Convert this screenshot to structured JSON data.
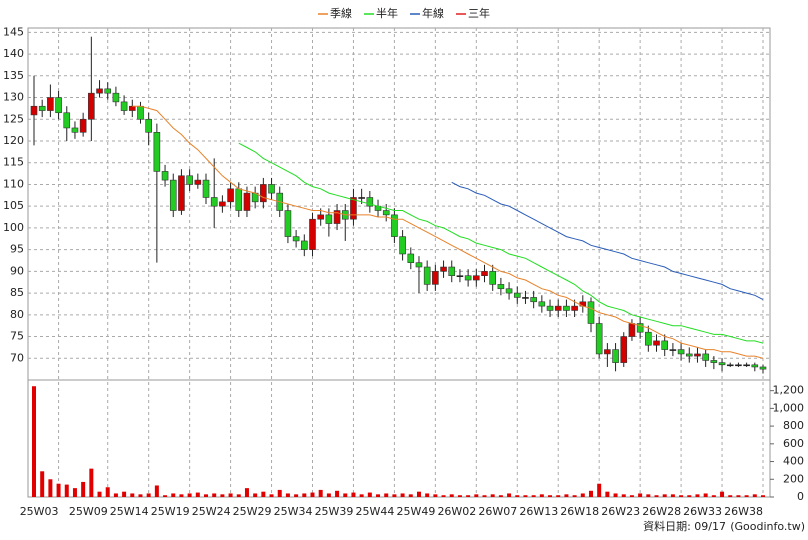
{
  "chart_data": {
    "type": "candlestick",
    "legend": "top",
    "grid": true,
    "date_note": "資料日期: 09/17",
    "source": "(Goodinfo.tw)",
    "up_color": "#d40000",
    "down_color": "#22cc22",
    "volume_color": "#e00000",
    "ylim": [
      65,
      146
    ],
    "yticks": [
      70,
      75,
      80,
      85,
      90,
      95,
      100,
      105,
      110,
      115,
      120,
      125,
      130,
      135,
      140,
      145
    ],
    "volume_ylim": [
      0,
      1230
    ],
    "volume_ticks": [
      0,
      200,
      400,
      600,
      800,
      {
        "value": 1000,
        "label": "1,000"
      },
      {
        "value": 1200,
        "label": "1,200"
      }
    ],
    "categories": [
      null,
      null,
      null,
      "25W03",
      null,
      null,
      null,
      null,
      null,
      "25W09",
      null,
      null,
      null,
      null,
      "25W14",
      null,
      null,
      null,
      null,
      "25W19",
      null,
      null,
      null,
      null,
      "25W24",
      null,
      null,
      null,
      null,
      "25W29",
      null,
      null,
      null,
      null,
      "25W34",
      null,
      null,
      null,
      null,
      "25W39",
      null,
      null,
      null,
      null,
      "25W44",
      null,
      null,
      null,
      null,
      "25W49",
      null,
      null,
      null,
      null,
      "26W02",
      null,
      null,
      null,
      null,
      "26W07",
      null,
      null,
      null,
      null,
      "26W13",
      null,
      null,
      null,
      null,
      "26W18",
      null,
      null,
      null,
      null,
      "26W23",
      null,
      null,
      null,
      null,
      "26W28",
      null,
      null,
      null,
      null,
      "26W33",
      null,
      null,
      null,
      null,
      "26W38"
    ],
    "open": [
      126,
      128,
      127,
      130,
      126.5,
      123,
      122,
      125,
      131,
      132,
      131,
      129,
      127,
      128,
      125,
      122,
      113,
      111,
      104,
      112,
      110,
      111,
      107,
      105,
      106,
      109,
      104,
      108,
      106,
      110,
      108,
      104,
      98,
      97,
      95,
      102,
      103,
      101,
      104,
      102,
      107,
      107,
      105,
      104,
      103,
      98,
      94,
      92,
      91,
      87,
      90,
      91,
      89,
      89,
      88,
      89,
      90,
      87,
      86,
      85,
      84,
      84,
      83,
      82,
      81,
      82,
      81,
      82,
      83,
      78,
      71,
      72,
      69,
      75,
      78,
      76,
      73,
      74,
      72,
      72,
      71,
      70.5,
      71,
      69.5,
      69,
      68.5,
      68.5,
      68.5,
      68.5,
      68
    ],
    "high": [
      135,
      129.5,
      133,
      131.5,
      128,
      124.5,
      126.5,
      144,
      134,
      133.5,
      132.5,
      130.5,
      129.5,
      129,
      126.5,
      124,
      114.5,
      112.5,
      113.5,
      113.5,
      112.5,
      112.5,
      116,
      107.5,
      110.5,
      110.5,
      109.5,
      109.5,
      111.5,
      111.5,
      109.5,
      105.5,
      99.5,
      98.5,
      103.5,
      104.5,
      104.5,
      105.5,
      105.5,
      109,
      109,
      108.5,
      106.5,
      105.5,
      104.5,
      99.5,
      95.5,
      93.5,
      92.5,
      91.5,
      92.5,
      92.5,
      90.5,
      90.5,
      90.5,
      91.5,
      91.5,
      88.5,
      87.5,
      86.5,
      85.5,
      85.5,
      84.5,
      83.5,
      83.5,
      83.5,
      83.5,
      84.5,
      84,
      79.5,
      73.5,
      73.5,
      76,
      79,
      79.5,
      77.5,
      75.5,
      75.5,
      73.5,
      73.5,
      72.5,
      72.5,
      72,
      70.5,
      70,
      69,
      69,
      69,
      69,
      68.5
    ],
    "low": [
      119,
      125.5,
      125.5,
      125,
      120,
      120.5,
      121,
      120,
      130,
      129.5,
      128,
      126,
      125.5,
      124,
      119,
      92,
      109.5,
      102.5,
      103,
      108.5,
      109,
      105.5,
      100,
      103.5,
      104.5,
      102.5,
      102.5,
      104.5,
      104.5,
      106.5,
      102.5,
      96.5,
      95.5,
      93.5,
      93.5,
      100.5,
      98,
      99.5,
      97,
      100.5,
      105.5,
      103.5,
      102.5,
      101.5,
      96.5,
      92.5,
      90.5,
      85,
      85.5,
      85.5,
      88.5,
      87.5,
      87.5,
      86.5,
      86.5,
      87.5,
      85.5,
      84.5,
      83.5,
      82.5,
      82.5,
      81.5,
      80.5,
      79.5,
      79.5,
      79.5,
      79.5,
      80.5,
      76,
      70,
      68,
      67,
      68,
      74,
      74.5,
      71.5,
      71.5,
      70.5,
      70.5,
      69.5,
      69,
      69,
      68,
      67.5,
      67,
      68,
      68,
      68,
      67,
      66.5
    ],
    "close": [
      128,
      127,
      130,
      126.5,
      123,
      122,
      125,
      131,
      132,
      131,
      129,
      127,
      128,
      125,
      122,
      113,
      111,
      104,
      112,
      110,
      111,
      107,
      105,
      106,
      109,
      104,
      108,
      106,
      110,
      108,
      104,
      98,
      97,
      95,
      102,
      103,
      101,
      104,
      102,
      107,
      107,
      105,
      104,
      103,
      98,
      94,
      92,
      91,
      87,
      90,
      91,
      89,
      89,
      88,
      89,
      90,
      87,
      86,
      85,
      84,
      84,
      83,
      82,
      81,
      82,
      81,
      82,
      83,
      78,
      71,
      72,
      69,
      75,
      78,
      76,
      73,
      74,
      72,
      72,
      71,
      70.5,
      71,
      69.5,
      69,
      68.5,
      68.5,
      68.5,
      68.5,
      68,
      67.5
    ],
    "volume": [
      1250,
      290,
      200,
      150,
      140,
      100,
      170,
      320,
      60,
      110,
      40,
      60,
      40,
      30,
      40,
      130,
      20,
      40,
      30,
      40,
      50,
      30,
      40,
      30,
      40,
      30,
      100,
      40,
      60,
      30,
      80,
      40,
      30,
      40,
      50,
      80,
      40,
      70,
      40,
      50,
      30,
      50,
      30,
      40,
      30,
      40,
      30,
      60,
      40,
      30,
      20,
      30,
      20,
      20,
      30,
      20,
      30,
      20,
      40,
      20,
      20,
      20,
      30,
      20,
      20,
      30,
      20,
      40,
      70,
      150,
      60,
      40,
      30,
      20,
      40,
      30,
      20,
      30,
      30,
      20,
      20,
      30,
      40,
      20,
      60,
      20,
      20,
      20,
      30,
      20
    ],
    "series": [
      {
        "name": "季線",
        "color": "#e8822a",
        "values": [
          null,
          null,
          null,
          null,
          null,
          null,
          null,
          null,
          null,
          null,
          null,
          null,
          128,
          128,
          127.5,
          127,
          125,
          123,
          121.5,
          119.5,
          118,
          116,
          114,
          112,
          110.5,
          109,
          108.5,
          108,
          107,
          106.5,
          106,
          105.5,
          105,
          104.5,
          104,
          104,
          103.5,
          103.5,
          103,
          103,
          103,
          103,
          102.5,
          102.5,
          102,
          102,
          101,
          100,
          99,
          98,
          97,
          96,
          95,
          94,
          93,
          92,
          91,
          90,
          89.5,
          88.5,
          88,
          87,
          86,
          85.5,
          84.5,
          84,
          83,
          82,
          81.5,
          80.5,
          80,
          79.5,
          78.5,
          78,
          77.5,
          77,
          76,
          75,
          74.5,
          73.5,
          73,
          72.5,
          72,
          72,
          71.5,
          71.5,
          71,
          70.5,
          70.5,
          70
        ]
      },
      {
        "name": "半年",
        "color": "#22dd22",
        "values": [
          null,
          null,
          null,
          null,
          null,
          null,
          null,
          null,
          null,
          null,
          null,
          null,
          null,
          null,
          null,
          null,
          null,
          null,
          null,
          null,
          null,
          null,
          null,
          null,
          null,
          119.5,
          118.5,
          117.5,
          116,
          115,
          114,
          113,
          112,
          110.5,
          109.5,
          109,
          108,
          107.5,
          107,
          106.5,
          106,
          105.5,
          105,
          104.5,
          104,
          104,
          103,
          102,
          101.5,
          100.5,
          100,
          99,
          98,
          97.5,
          96.5,
          96,
          95.5,
          95,
          94,
          93.5,
          93,
          92,
          91,
          90,
          89,
          88,
          87,
          85.5,
          84.5,
          83,
          82,
          81.5,
          81,
          80,
          79.5,
          79,
          78.5,
          78,
          77.5,
          77.5,
          77,
          76.5,
          76,
          75.5,
          75.5,
          75,
          74.5,
          74,
          74,
          73.5
        ]
      },
      {
        "name": "年線",
        "color": "#2a5db8",
        "values": [
          null,
          null,
          null,
          null,
          null,
          null,
          null,
          null,
          null,
          null,
          null,
          null,
          null,
          null,
          null,
          null,
          null,
          null,
          null,
          null,
          null,
          null,
          null,
          null,
          null,
          null,
          null,
          null,
          null,
          null,
          null,
          null,
          null,
          null,
          null,
          null,
          null,
          null,
          null,
          null,
          null,
          null,
          null,
          null,
          null,
          null,
          null,
          null,
          null,
          null,
          null,
          110.5,
          109.5,
          109,
          108,
          107.5,
          106.5,
          105.5,
          105,
          104,
          103,
          102,
          101,
          100,
          99,
          98,
          97.5,
          97,
          96,
          95.5,
          95,
          94.5,
          94,
          93,
          92.5,
          92,
          91.5,
          91,
          90,
          89.5,
          89,
          88.5,
          88,
          87.5,
          87,
          86,
          85.5,
          85,
          84.5,
          83.5
        ]
      },
      {
        "name": "三年",
        "color": "#e02020"
      }
    ]
  }
}
